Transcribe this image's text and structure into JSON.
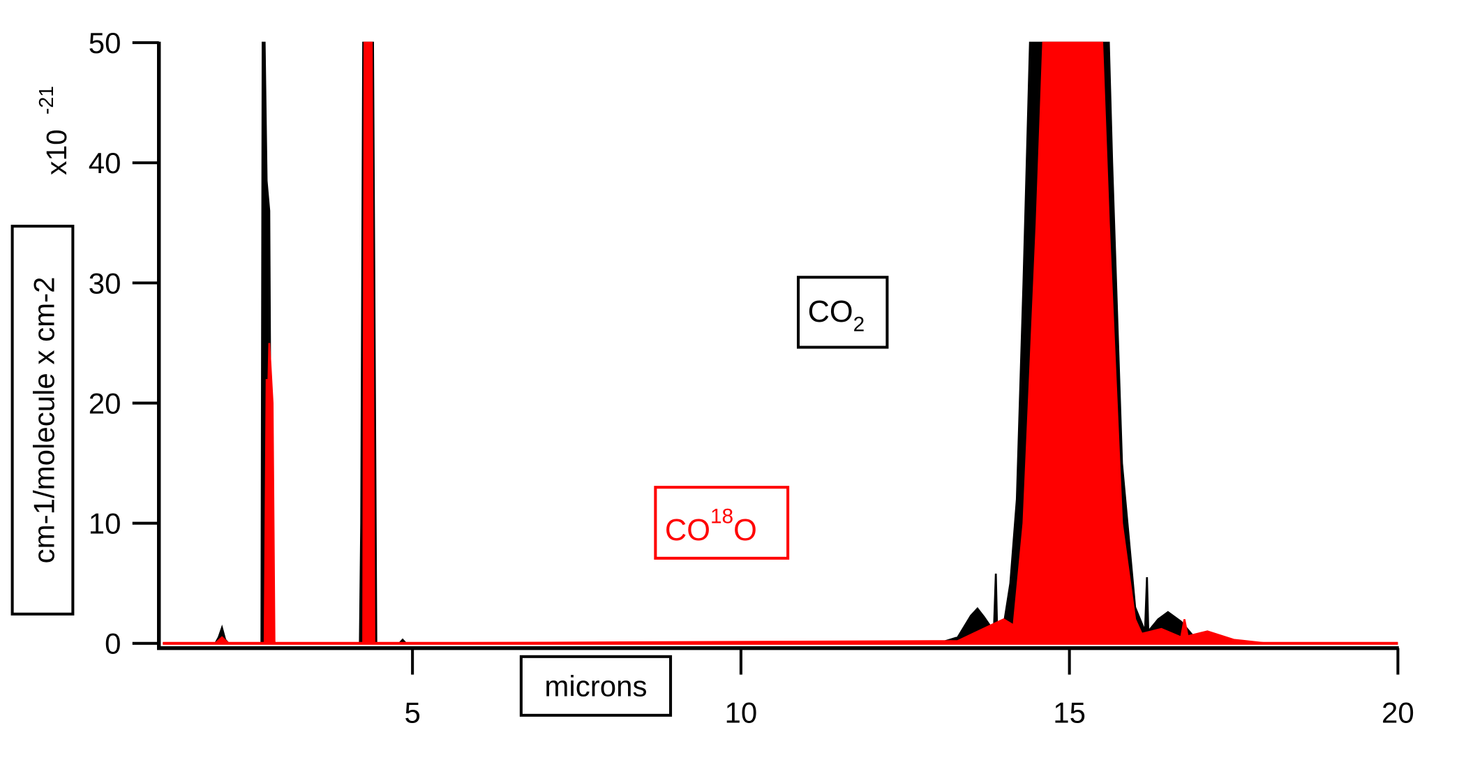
{
  "chart_data": {
    "type": "area",
    "xlabel": "microns",
    "ylabel": "cm-1/molecule x cm-2",
    "y_multiplier": {
      "base": "x10",
      "exponent": "-21"
    },
    "xlim": [
      1.14,
      20
    ],
    "ylim": [
      0,
      50
    ],
    "x_ticks": [
      5,
      10,
      15,
      20
    ],
    "y_ticks": [
      0,
      10,
      20,
      30,
      40,
      50
    ],
    "grid": false,
    "series": [
      {
        "name": "CO2",
        "color": "#000000",
        "x": [
          1.2,
          2.0,
          2.05,
          2.1,
          2.15,
          2.2,
          2.7,
          2.72,
          2.75,
          2.78,
          2.82,
          2.85,
          2.9,
          4.2,
          4.22,
          4.25,
          4.4,
          4.45,
          4.8,
          4.85,
          4.9,
          13.0,
          13.3,
          13.5,
          13.6,
          13.7,
          13.85,
          13.88,
          13.9,
          14.0,
          14.1,
          14.2,
          14.3,
          14.4,
          15.6,
          15.65,
          15.8,
          16.0,
          16.15,
          16.18,
          16.2,
          16.35,
          16.5,
          16.7,
          16.9,
          17.0,
          20.0
        ],
        "y": [
          0,
          0,
          0.5,
          1.3,
          0.3,
          0,
          0,
          50,
          50,
          38.5,
          36,
          5,
          0,
          0,
          10,
          50,
          50,
          0,
          0,
          0.3,
          0,
          0,
          0.5,
          2.3,
          2.9,
          2.2,
          1.0,
          5.8,
          1.0,
          1.5,
          5,
          12,
          30,
          50,
          50,
          40,
          15,
          3,
          1,
          5.5,
          1,
          2.0,
          2.6,
          1.8,
          0.5,
          0,
          0
        ]
      },
      {
        "name": "CO18O",
        "color": "#ff0000",
        "x": [
          1.2,
          2.0,
          2.1,
          2.2,
          2.75,
          2.78,
          2.8,
          2.82,
          2.87,
          2.9,
          4.25,
          4.27,
          4.38,
          4.42,
          13.3,
          13.8,
          14.0,
          14.15,
          14.3,
          14.5,
          14.6,
          15.5,
          15.6,
          15.8,
          16.0,
          16.1,
          16.4,
          16.7,
          16.75,
          16.8,
          17.1,
          17.5,
          18.0,
          20.0
        ],
        "y": [
          0,
          0,
          0.5,
          0,
          0,
          22,
          20,
          25,
          20,
          0,
          0,
          50,
          50,
          0,
          0.2,
          1.5,
          2,
          1.5,
          10,
          35,
          50,
          50,
          35,
          10,
          2,
          0.8,
          1.2,
          0.5,
          2,
          0.6,
          1.0,
          0.3,
          0,
          0
        ]
      }
    ],
    "annotations": [
      {
        "text": "CO",
        "sub": "2",
        "color": "#000000"
      },
      {
        "text": "CO",
        "sup": "18",
        "tail": "O",
        "color": "#ff0000"
      }
    ]
  }
}
